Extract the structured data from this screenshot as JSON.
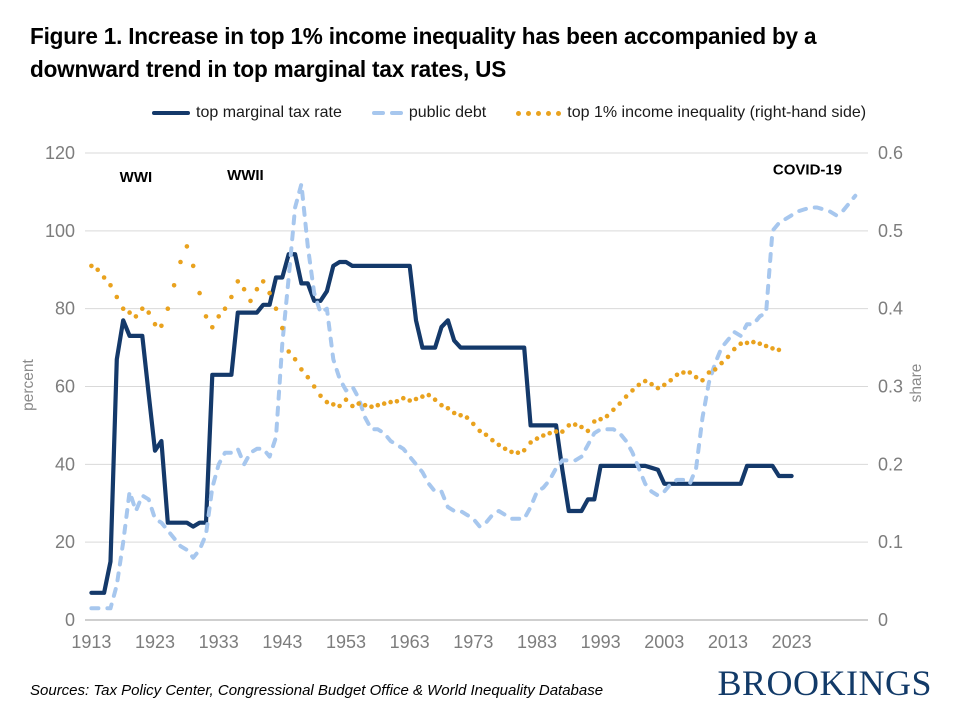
{
  "figure": {
    "title_line1": "Figure 1. Increase in top 1% income inequality has been accompanied by a",
    "title_line2": "downward trend in top marginal tax rates, US",
    "source_note": "Sources: Tax Policy Center, Congressional Budget Office & World Inequality Database",
    "brand": "BROOKINGS"
  },
  "colors": {
    "navy": "#14396a",
    "light_blue": "#a7c7ee",
    "orange": "#e9a21e",
    "grid": "#d9d9d9",
    "axis_line": "#bfbfbf",
    "tick_text": "#7d7d7d",
    "axis_title_text": "#8a8a8a",
    "annotation_text": "#000000",
    "brand_navy": "#123a68"
  },
  "chart_data": {
    "type": "line",
    "title": "Increase in top 1% income inequality has been accompanied by a downward trend in top marginal tax rates, US",
    "x_axis": {
      "ticks": [
        1913,
        1923,
        1933,
        1943,
        1953,
        1963,
        1973,
        1983,
        1993,
        2003,
        2013,
        2023
      ],
      "range": [
        1912,
        2035
      ]
    },
    "left_axis": {
      "label": "percent",
      "ticks": [
        0,
        20,
        40,
        60,
        80,
        100,
        120
      ],
      "range": [
        0,
        120
      ]
    },
    "right_axis": {
      "label": "share",
      "ticks": [
        "0",
        "0.1",
        "0.2",
        "0.3",
        "0.4",
        "0.5",
        "0.6"
      ],
      "range": [
        0,
        0.6
      ]
    },
    "legend_position": "top",
    "grid": "horizontal",
    "annotations": [
      {
        "label": "WWI",
        "year": 1920,
        "percent": 112.5
      },
      {
        "label": "WWII",
        "year": 1937.2,
        "percent": 113
      },
      {
        "label": "COVID-19",
        "year": 2025.5,
        "percent": 114.5
      }
    ],
    "series": [
      {
        "name": "top marginal tax rate",
        "axis": "left",
        "style": "solid",
        "color_key": "navy",
        "start_year": 1913,
        "values": [
          7,
          7,
          7,
          15,
          67,
          77,
          73,
          73,
          73,
          58,
          43.5,
          46,
          25,
          25,
          25,
          25,
          24,
          25,
          25,
          63,
          63,
          63,
          63,
          79,
          79,
          79,
          79,
          81,
          81,
          88,
          88,
          94,
          94,
          86.5,
          86.5,
          82,
          82,
          84.5,
          91,
          92,
          92,
          91,
          91,
          91,
          91,
          91,
          91,
          91,
          91,
          91,
          91,
          77,
          70,
          70,
          70,
          75.3,
          77,
          71.8,
          70,
          70,
          70,
          70,
          70,
          70,
          70,
          70,
          70,
          70,
          70,
          50,
          50,
          50,
          50,
          50,
          38.5,
          28,
          28,
          28,
          31,
          31,
          39.6,
          39.6,
          39.6,
          39.6,
          39.6,
          39.6,
          39.6,
          39.6,
          39.1,
          38.6,
          35,
          35,
          35,
          35,
          35,
          35,
          35,
          35,
          35,
          35,
          35,
          35,
          35,
          39.6,
          39.6,
          39.6,
          39.6,
          39.6,
          37,
          37,
          37
        ]
      },
      {
        "name": "public debt",
        "axis": "left",
        "style": "dashed",
        "color_key": "light_blue",
        "start_year": 1913,
        "values": [
          3,
          3,
          3,
          3,
          9,
          20,
          33,
          28,
          32,
          31,
          26,
          25,
          23,
          21,
          19,
          18,
          16,
          18,
          22,
          34,
          40,
          43,
          43,
          44,
          40,
          43,
          44,
          44,
          42,
          47,
          71,
          88,
          106,
          112,
          96,
          84,
          79,
          80,
          67,
          62,
          59,
          60,
          57,
          52,
          49,
          49,
          48,
          46,
          45,
          44,
          42,
          40,
          38,
          35,
          33,
          33,
          29,
          28,
          28,
          27,
          26,
          24,
          25,
          27,
          28,
          27,
          26,
          26,
          26,
          29,
          33,
          34,
          36,
          39,
          41,
          41,
          41,
          42,
          45,
          48,
          49,
          49,
          49,
          48,
          46,
          43,
          39,
          35,
          33,
          32,
          33,
          35,
          36,
          36,
          35,
          39,
          52,
          61,
          66,
          70,
          72,
          74,
          73,
          76,
          76,
          78,
          79,
          100,
          102,
          103,
          104,
          105,
          105.5,
          106,
          106,
          105.5,
          105,
          104,
          105,
          107,
          109
        ]
      },
      {
        "name": "top 1% income inequality (right-hand side)",
        "axis": "right",
        "style": "dotted",
        "color_key": "orange",
        "start_year": 1913,
        "values": [
          0.455,
          0.45,
          0.44,
          0.43,
          0.415,
          0.4,
          0.395,
          0.39,
          0.4,
          0.395,
          0.38,
          0.378,
          0.4,
          0.43,
          0.46,
          0.48,
          0.455,
          0.42,
          0.39,
          0.376,
          0.39,
          0.4,
          0.415,
          0.435,
          0.425,
          0.41,
          0.425,
          0.435,
          0.42,
          0.4,
          0.375,
          0.345,
          0.335,
          0.322,
          0.312,
          0.3,
          0.288,
          0.28,
          0.277,
          0.275,
          0.283,
          0.275,
          0.278,
          0.276,
          0.274,
          0.276,
          0.278,
          0.28,
          0.281,
          0.285,
          0.282,
          0.284,
          0.287,
          0.289,
          0.283,
          0.276,
          0.272,
          0.266,
          0.263,
          0.26,
          0.252,
          0.243,
          0.238,
          0.231,
          0.225,
          0.22,
          0.216,
          0.215,
          0.218,
          0.228,
          0.233,
          0.237,
          0.24,
          0.242,
          0.242,
          0.25,
          0.251,
          0.248,
          0.243,
          0.255,
          0.258,
          0.262,
          0.27,
          0.278,
          0.287,
          0.295,
          0.302,
          0.307,
          0.303,
          0.298,
          0.302,
          0.308,
          0.315,
          0.318,
          0.318,
          0.312,
          0.308,
          0.318,
          0.322,
          0.33,
          0.338,
          0.348,
          0.355,
          0.356,
          0.357,
          0.355,
          0.352,
          0.349,
          0.347
        ]
      }
    ]
  }
}
